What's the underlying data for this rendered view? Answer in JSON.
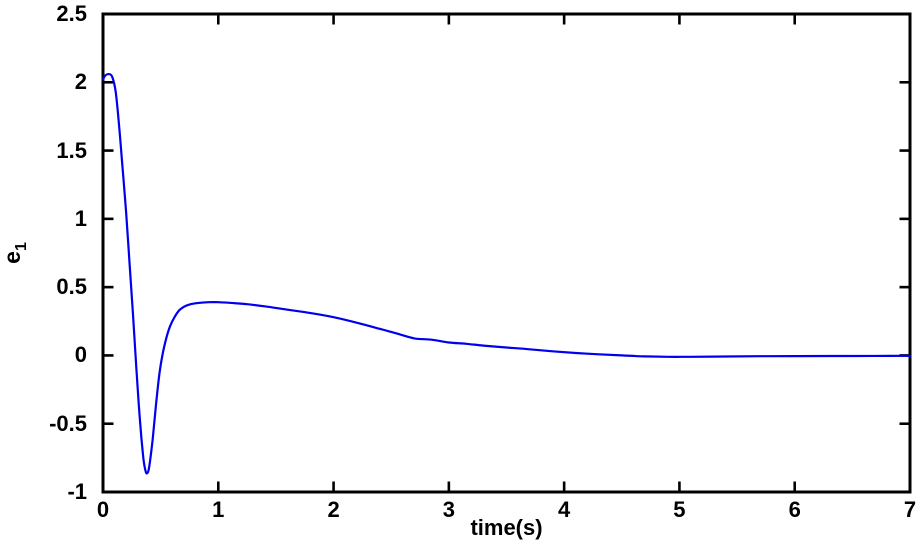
{
  "figure": {
    "background": "#ffffff"
  },
  "chart_data": {
    "type": "line",
    "title": "",
    "xlabel": "time(s)",
    "ylabel": "e_1",
    "ylabel_base": "e",
    "ylabel_sub": "1",
    "xlim": [
      0,
      7
    ],
    "ylim": [
      -1,
      2.5
    ],
    "x_ticks": [
      0,
      1,
      2,
      3,
      4,
      5,
      6,
      7
    ],
    "x_tick_labels": [
      "0",
      "1",
      "2",
      "3",
      "4",
      "5",
      "6",
      "7"
    ],
    "y_ticks": [
      -1,
      -0.5,
      0,
      0.5,
      1,
      1.5,
      2,
      2.5
    ],
    "y_tick_labels": [
      "-1",
      "-0.5",
      "0",
      "0.5",
      "1",
      "1.5",
      "2",
      "2.5"
    ],
    "grid": false,
    "legend_position": "none",
    "line_color": "#0000ee",
    "axis_color": "#000000",
    "series": [
      {
        "name": "e1",
        "x": [
          0,
          0.02,
          0.05,
          0.08,
          0.11,
          0.14,
          0.17,
          0.2,
          0.23,
          0.26,
          0.29,
          0.32,
          0.35,
          0.37,
          0.385,
          0.4,
          0.43,
          0.46,
          0.49,
          0.52,
          0.55,
          0.58,
          0.62,
          0.66,
          0.7,
          0.76,
          0.84,
          0.92,
          1.0,
          1.1,
          1.25,
          1.4,
          1.6,
          1.8,
          2.0,
          2.2,
          2.4,
          2.55,
          2.7,
          2.85,
          3.0,
          3.15,
          3.3,
          3.5,
          3.7,
          3.9,
          4.1,
          4.3,
          4.5,
          4.7,
          4.9,
          5.1,
          5.4,
          5.7,
          6.0,
          6.5,
          7.0
        ],
        "y": [
          2.02,
          2.05,
          2.06,
          2.04,
          1.93,
          1.68,
          1.37,
          1.05,
          0.68,
          0.3,
          -0.1,
          -0.47,
          -0.75,
          -0.85,
          -0.86,
          -0.82,
          -0.62,
          -0.36,
          -0.13,
          0.02,
          0.13,
          0.21,
          0.28,
          0.33,
          0.355,
          0.375,
          0.385,
          0.39,
          0.39,
          0.385,
          0.375,
          0.36,
          0.335,
          0.31,
          0.28,
          0.24,
          0.195,
          0.16,
          0.125,
          0.115,
          0.095,
          0.085,
          0.072,
          0.058,
          0.045,
          0.03,
          0.018,
          0.008,
          0.0,
          -0.007,
          -0.01,
          -0.01,
          -0.008,
          -0.006,
          -0.005,
          -0.004,
          -0.003
        ]
      }
    ]
  }
}
